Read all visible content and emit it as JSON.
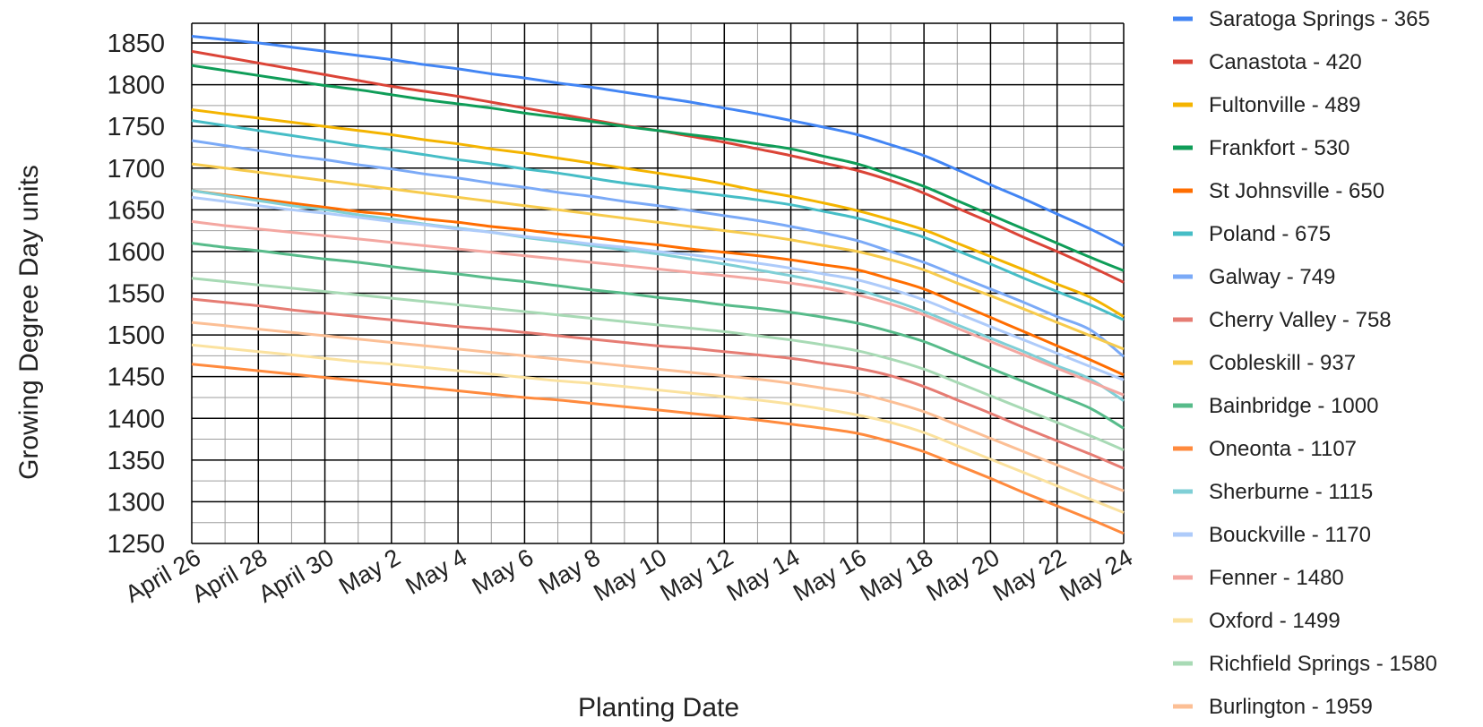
{
  "chart_data": {
    "type": "line",
    "xlabel": "Planting Date",
    "ylabel": "Growing Degree Day units",
    "ylim": [
      1250,
      1860
    ],
    "yticks": [
      1250,
      1300,
      1350,
      1400,
      1450,
      1500,
      1550,
      1600,
      1650,
      1700,
      1750,
      1800,
      1850
    ],
    "x_tick_labels": [
      "April 26",
      "April 28",
      "April 30",
      "May 2",
      "May 4",
      "May 6",
      "May 8",
      "May 10",
      "May 12",
      "May 14",
      "May 16",
      "May 18",
      "May 20",
      "May 22",
      "May 24"
    ],
    "x_dates": [
      "April 26",
      "April 27",
      "April 28",
      "April 29",
      "April 30",
      "May 1",
      "May 2",
      "May 3",
      "May 4",
      "May 5",
      "May 6",
      "May 7",
      "May 8",
      "May 9",
      "May 10",
      "May 11",
      "May 12",
      "May 13",
      "May 14",
      "May 15",
      "May 16",
      "May 17",
      "May 18",
      "May 19",
      "May 20",
      "May 21",
      "May 22",
      "May 23",
      "May 24"
    ],
    "grid": true,
    "legend_position": "right",
    "series": [
      {
        "name": "Saratoga Springs - 365",
        "color": "#4285f4",
        "values": [
          1858,
          1854,
          1850,
          1845,
          1840,
          1835,
          1830,
          1824,
          1819,
          1813,
          1808,
          1802,
          1797,
          1791,
          1785,
          1779,
          1772,
          1765,
          1757,
          1749,
          1740,
          1728,
          1715,
          1698,
          1680,
          1663,
          1645,
          1627,
          1607
        ]
      },
      {
        "name": "Canastota - 420",
        "color": "#db4437",
        "values": [
          1840,
          1833,
          1826,
          1819,
          1812,
          1805,
          1798,
          1792,
          1786,
          1779,
          1772,
          1765,
          1758,
          1751,
          1745,
          1738,
          1731,
          1723,
          1715,
          1706,
          1697,
          1685,
          1670,
          1652,
          1635,
          1617,
          1600,
          1582,
          1563
        ]
      },
      {
        "name": "Fultonville - 489",
        "color": "#f4b400",
        "values": [
          1770,
          1765,
          1760,
          1755,
          1750,
          1745,
          1740,
          1734,
          1729,
          1723,
          1718,
          1712,
          1706,
          1700,
          1694,
          1688,
          1681,
          1673,
          1666,
          1658,
          1649,
          1638,
          1626,
          1610,
          1594,
          1578,
          1561,
          1545,
          1522
        ]
      },
      {
        "name": "Frankfort - 530",
        "color": "#0f9d58",
        "values": [
          1823,
          1817,
          1811,
          1805,
          1799,
          1794,
          1788,
          1782,
          1777,
          1772,
          1766,
          1761,
          1756,
          1750,
          1745,
          1740,
          1735,
          1729,
          1723,
          1714,
          1705,
          1692,
          1678,
          1661,
          1644,
          1627,
          1610,
          1593,
          1577
        ]
      },
      {
        "name": "St Johnsville - 650",
        "color": "#ff6d00",
        "values": [
          1673,
          1668,
          1663,
          1658,
          1653,
          1648,
          1644,
          1639,
          1635,
          1630,
          1626,
          1621,
          1617,
          1612,
          1608,
          1603,
          1599,
          1595,
          1590,
          1584,
          1578,
          1567,
          1555,
          1538,
          1521,
          1504,
          1487,
          1470,
          1452
        ]
      },
      {
        "name": "Poland - 675",
        "color": "#46bdc6",
        "values": [
          1757,
          1751,
          1745,
          1739,
          1733,
          1727,
          1722,
          1716,
          1710,
          1705,
          1699,
          1694,
          1688,
          1682,
          1677,
          1672,
          1667,
          1662,
          1656,
          1648,
          1640,
          1629,
          1617,
          1601,
          1585,
          1568,
          1552,
          1536,
          1518
        ]
      },
      {
        "name": "Galway - 749",
        "color": "#7baaf7",
        "values": [
          1733,
          1727,
          1721,
          1715,
          1710,
          1704,
          1699,
          1693,
          1688,
          1682,
          1677,
          1671,
          1666,
          1660,
          1655,
          1649,
          1643,
          1637,
          1630,
          1622,
          1613,
          1600,
          1587,
          1571,
          1555,
          1539,
          1522,
          1506,
          1474
        ]
      },
      {
        "name": "Cherry Valley - 758",
        "color": "#e67c73",
        "values": [
          1543,
          1539,
          1535,
          1530,
          1526,
          1522,
          1518,
          1514,
          1510,
          1507,
          1503,
          1499,
          1495,
          1491,
          1487,
          1484,
          1480,
          1476,
          1472,
          1466,
          1460,
          1451,
          1438,
          1422,
          1406,
          1389,
          1373,
          1357,
          1340
        ]
      },
      {
        "name": "Cobleskill - 937",
        "color": "#f7cb4d",
        "values": [
          1705,
          1700,
          1695,
          1690,
          1685,
          1680,
          1675,
          1670,
          1665,
          1660,
          1655,
          1650,
          1645,
          1640,
          1635,
          1630,
          1625,
          1620,
          1614,
          1607,
          1600,
          1590,
          1578,
          1562,
          1547,
          1531,
          1515,
          1499,
          1483
        ]
      },
      {
        "name": "Bainbridge - 1000",
        "color": "#57bb8a",
        "values": [
          1610,
          1605,
          1601,
          1596,
          1591,
          1587,
          1582,
          1577,
          1573,
          1568,
          1564,
          1559,
          1554,
          1550,
          1545,
          1541,
          1536,
          1532,
          1527,
          1521,
          1514,
          1504,
          1492,
          1476,
          1460,
          1444,
          1428,
          1412,
          1388
        ]
      },
      {
        "name": "Oneonta - 1107",
        "color": "#ff8a3d",
        "values": [
          1465,
          1461,
          1457,
          1453,
          1449,
          1445,
          1441,
          1437,
          1433,
          1429,
          1425,
          1422,
          1418,
          1414,
          1410,
          1406,
          1402,
          1398,
          1393,
          1388,
          1382,
          1372,
          1360,
          1344,
          1328,
          1311,
          1295,
          1279,
          1262
        ]
      },
      {
        "name": "Sherburne - 1115",
        "color": "#7fcfd6",
        "values": [
          1673,
          1667,
          1661,
          1655,
          1650,
          1644,
          1639,
          1633,
          1628,
          1623,
          1617,
          1612,
          1607,
          1602,
          1597,
          1591,
          1585,
          1578,
          1571,
          1563,
          1554,
          1542,
          1528,
          1512,
          1496,
          1480,
          1463,
          1447,
          1421
        ]
      },
      {
        "name": "Bouckville - 1170",
        "color": "#aecbfa",
        "values": [
          1665,
          1660,
          1655,
          1650,
          1646,
          1641,
          1636,
          1632,
          1627,
          1623,
          1618,
          1614,
          1609,
          1605,
          1600,
          1596,
          1591,
          1586,
          1580,
          1573,
          1566,
          1555,
          1542,
          1526,
          1510,
          1494,
          1478,
          1462,
          1446
        ]
      },
      {
        "name": "Fenner - 1480",
        "color": "#f4a7a1",
        "values": [
          1636,
          1631,
          1627,
          1623,
          1619,
          1615,
          1611,
          1607,
          1603,
          1599,
          1595,
          1591,
          1587,
          1583,
          1579,
          1575,
          1571,
          1567,
          1562,
          1556,
          1548,
          1537,
          1524,
          1508,
          1492,
          1476,
          1460,
          1444,
          1428
        ]
      },
      {
        "name": "Oxford - 1499",
        "color": "#fbe29f",
        "values": [
          1488,
          1484,
          1480,
          1476,
          1472,
          1468,
          1465,
          1461,
          1457,
          1453,
          1449,
          1445,
          1442,
          1438,
          1434,
          1430,
          1426,
          1422,
          1417,
          1411,
          1404,
          1395,
          1383,
          1367,
          1351,
          1335,
          1319,
          1303,
          1287
        ]
      },
      {
        "name": "Richfield Springs - 1580",
        "color": "#a8dab5",
        "values": [
          1568,
          1564,
          1560,
          1556,
          1552,
          1548,
          1544,
          1540,
          1536,
          1532,
          1528,
          1524,
          1520,
          1516,
          1512,
          1508,
          1504,
          1499,
          1494,
          1488,
          1481,
          1471,
          1459,
          1443,
          1427,
          1411,
          1395,
          1379,
          1362
        ]
      },
      {
        "name": "Burlington - 1959",
        "color": "#fcbf95",
        "values": [
          1515,
          1511,
          1507,
          1503,
          1499,
          1495,
          1491,
          1487,
          1483,
          1479,
          1475,
          1471,
          1467,
          1463,
          1459,
          1455,
          1451,
          1447,
          1442,
          1436,
          1430,
          1420,
          1408,
          1392,
          1376,
          1360,
          1344,
          1328,
          1313
        ]
      }
    ]
  }
}
